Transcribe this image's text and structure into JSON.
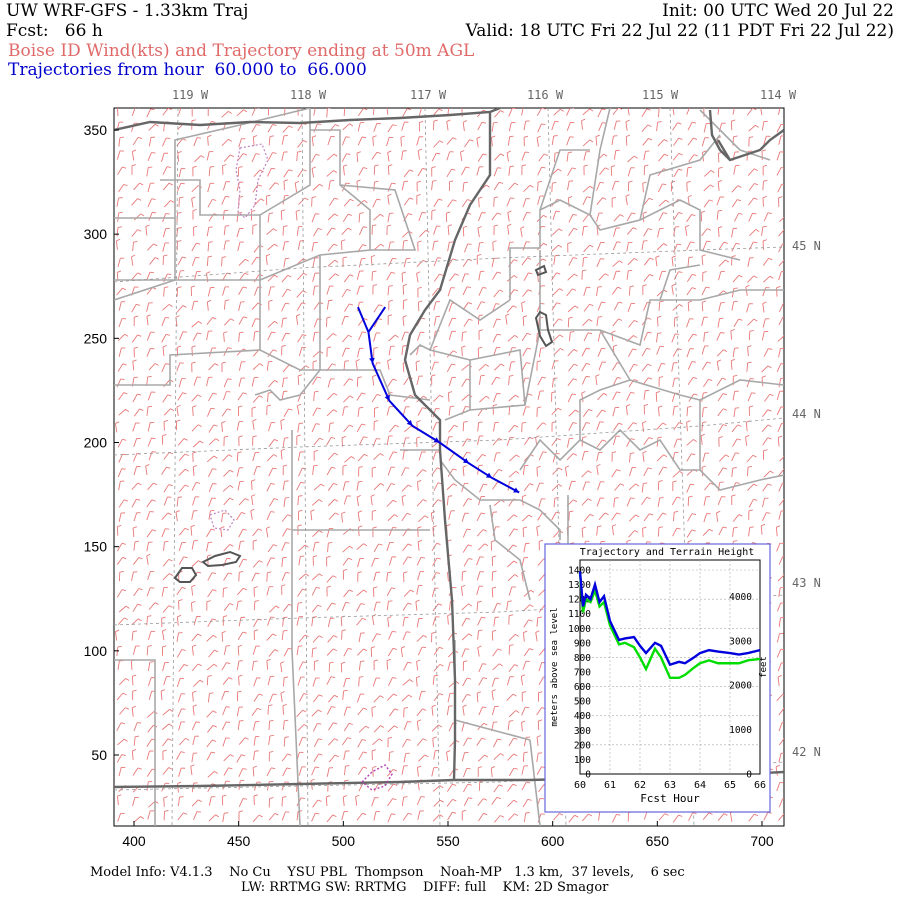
{
  "header": {
    "title": "UW WRF-GFS - 1.33km Traj",
    "init": "Init: 00 UTC Wed 20 Jul 22",
    "fcst": "Fcst:   66 h",
    "valid": "Valid: 18 UTC Fri 22 Jul 22 (11 PDT Fri 22 Jul 22)",
    "subtitle": "Boise ID Wind(kts) and Trajectory ending at 50m AGL",
    "traj_range": "Trajectories from hour  60.000 to  66.000"
  },
  "colors": {
    "subtitle": "#e06a6a",
    "traj_range": "#0000cc",
    "wind_barbs": "#e87878",
    "state_borders": "#555555",
    "county_borders": "#a8a8a8",
    "latlon_grid": "#999999",
    "trajectory": "#0000dd",
    "terrain_line": "#00dd00",
    "lakes": "#b040b0"
  },
  "map": {
    "lon_labels": [
      "119 W",
      "118 W",
      "117 W",
      "116 W",
      "115 W",
      "114 W"
    ],
    "lat_labels": [
      "45 N",
      "44 N",
      "43 N",
      "42 N"
    ],
    "y_ticks": [
      "350",
      "300",
      "250",
      "200",
      "150",
      "100",
      "50"
    ],
    "x_ticks": [
      "400",
      "450",
      "500",
      "550",
      "600",
      "650",
      "700"
    ],
    "trajectory_points": [
      [
        512,
        253
      ],
      [
        514,
        238
      ],
      [
        522,
        220
      ],
      [
        533,
        208
      ],
      [
        546,
        200
      ],
      [
        560,
        190
      ],
      [
        571,
        183
      ],
      [
        584,
        176
      ]
    ],
    "trajectory_start_branches": [
      [
        [
          512,
          253
        ],
        [
          507,
          265
        ]
      ],
      [
        [
          512,
          253
        ],
        [
          520,
          265
        ]
      ]
    ]
  },
  "inset": {
    "title": "Trajectory and Terrain Height",
    "ylabel_left": "meters above sea level",
    "ylabel_right": "feet",
    "xlabel": "Fcst Hour",
    "left_ticks": [
      "1400",
      "1300",
      "1200",
      "1100",
      "1000",
      "900",
      "800",
      "700",
      "600",
      "500",
      "400",
      "300",
      "200",
      "100",
      "0"
    ],
    "right_ticks": [
      "4000",
      "3000",
      "2000",
      "1000",
      "0"
    ],
    "x_ticks": [
      "60",
      "61",
      "62",
      "63",
      "64",
      "65",
      "66"
    ]
  },
  "chart_data": {
    "type": "line",
    "title": "Trajectory and Terrain Height",
    "xlabel": "Fcst Hour",
    "ylabel": "meters above sea level",
    "ylabel_right": "feet",
    "xlim": [
      60,
      66
    ],
    "ylim": [
      0,
      1400
    ],
    "grid": true,
    "series": [
      {
        "x": [
          60.0,
          60.1,
          60.2,
          60.35,
          60.5,
          60.65,
          60.8,
          61.0,
          61.3,
          61.5,
          61.8,
          62.0,
          62.2,
          62.5,
          62.7,
          63.0,
          63.3,
          63.5,
          63.8,
          64.0,
          64.3,
          64.6,
          65.0,
          65.3,
          65.6,
          66.0
        ],
        "values": [
          1390,
          1150,
          1230,
          1200,
          1300,
          1180,
          1220,
          1050,
          920,
          930,
          940,
          880,
          830,
          900,
          880,
          750,
          770,
          760,
          800,
          830,
          850,
          840,
          830,
          820,
          830,
          850
        ]
      },
      {
        "x": [
          60.0,
          60.1,
          60.2,
          60.35,
          60.5,
          60.65,
          60.8,
          61.0,
          61.3,
          61.5,
          61.8,
          62.0,
          62.2,
          62.5,
          62.7,
          63.0,
          63.3,
          63.5,
          63.8,
          64.0,
          64.3,
          64.6,
          65.0,
          65.3,
          65.6,
          66.0
        ],
        "values": [
          1380,
          1110,
          1200,
          1180,
          1260,
          1150,
          1180,
          1020,
          890,
          900,
          870,
          800,
          720,
          860,
          800,
          660,
          660,
          680,
          730,
          760,
          780,
          760,
          760,
          760,
          780,
          790
        ]
      }
    ]
  },
  "footer": {
    "line1": "Model Info: V4.1.3    No Cu    YSU PBL  Thompson    Noah-MP   1.3 km,  37 levels,    6 sec",
    "line2": "LW: RRTMG SW: RRTMG    DIFF: full    KM: 2D Smagor"
  }
}
